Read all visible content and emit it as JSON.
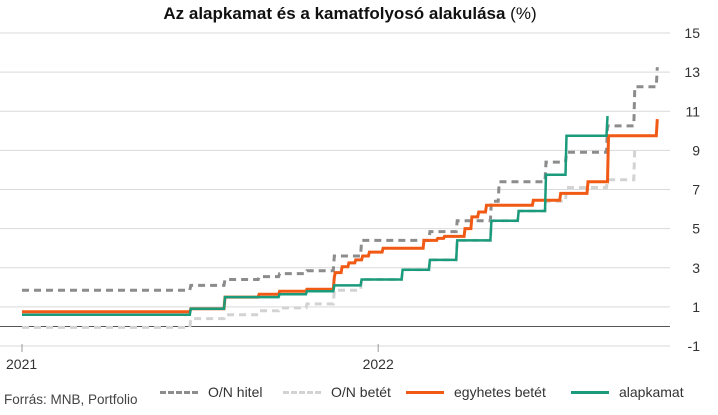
{
  "title": {
    "bold_part": "Az alapkamat és a kamatfolyosó alakulása",
    "unit_part": " (%)"
  },
  "source": "Forrás: MNB, Portfolio",
  "colors": {
    "on_hitel": "#8c8c8c",
    "on_betet": "#d3d3d3",
    "egyhetes": "#f05a14",
    "alapkamat": "#1a9b7b",
    "grid": "#d9d9d9",
    "zero": "#555555",
    "text": "#333333"
  },
  "chart_data": {
    "type": "line",
    "title": "Az alapkamat és a kamatfolyosó alakulása (%)",
    "x_axis": {
      "type": "date",
      "min": "2021-01-01",
      "max": "2022-10-25",
      "ticks": [
        "2021",
        "2022"
      ],
      "tick_dates": [
        "2021-01-01",
        "2022-01-01"
      ]
    },
    "y_axis": {
      "min": -1,
      "max": 15,
      "ticks": [
        -1,
        1,
        3,
        5,
        7,
        9,
        11,
        13,
        15
      ],
      "position": "right",
      "grid": true
    },
    "legend_position": "bottom",
    "series": [
      {
        "name": "O/N hitel",
        "style": "dashed",
        "points": [
          [
            "2021-01-01",
            1.85
          ],
          [
            "2021-06-22",
            1.85
          ],
          [
            "2021-06-23",
            2.1
          ],
          [
            "2021-07-27",
            2.1
          ],
          [
            "2021-07-28",
            2.4
          ],
          [
            "2021-08-31",
            2.4
          ],
          [
            "2021-09-01",
            2.55
          ],
          [
            "2021-09-21",
            2.55
          ],
          [
            "2021-09-22",
            2.7
          ],
          [
            "2021-10-19",
            2.7
          ],
          [
            "2021-10-20",
            2.85
          ],
          [
            "2021-11-16",
            2.85
          ],
          [
            "2021-11-17",
            3.6
          ],
          [
            "2021-12-14",
            3.6
          ],
          [
            "2021-12-15",
            4.4
          ],
          [
            "2022-02-22",
            4.4
          ],
          [
            "2022-02-23",
            4.85
          ],
          [
            "2022-03-22",
            4.85
          ],
          [
            "2022-03-23",
            5.4
          ],
          [
            "2022-04-26",
            5.4
          ],
          [
            "2022-04-27",
            6.4
          ],
          [
            "2022-05-04",
            6.4
          ],
          [
            "2022-05-05",
            7.4
          ],
          [
            "2022-06-21",
            7.4
          ],
          [
            "2022-06-22",
            8.4
          ],
          [
            "2022-07-12",
            8.4
          ],
          [
            "2022-07-13",
            8.9
          ],
          [
            "2022-08-23",
            8.9
          ],
          [
            "2022-08-24",
            10.25
          ],
          [
            "2022-09-20",
            10.25
          ],
          [
            "2022-09-21",
            12.25
          ],
          [
            "2022-10-13",
            12.25
          ],
          [
            "2022-10-14",
            13.25
          ]
        ]
      },
      {
        "name": "O/N betét",
        "style": "dashed",
        "points": [
          [
            "2021-01-01",
            -0.05
          ],
          [
            "2021-06-22",
            -0.05
          ],
          [
            "2021-06-23",
            0.4
          ],
          [
            "2021-07-27",
            0.4
          ],
          [
            "2021-07-28",
            0.6
          ],
          [
            "2021-08-31",
            0.6
          ],
          [
            "2021-09-01",
            0.8
          ],
          [
            "2021-09-21",
            0.8
          ],
          [
            "2021-09-22",
            0.95
          ],
          [
            "2021-10-19",
            0.95
          ],
          [
            "2021-10-20",
            1.15
          ],
          [
            "2021-11-16",
            1.15
          ],
          [
            "2021-11-17",
            1.85
          ],
          [
            "2021-12-14",
            1.85
          ],
          [
            "2021-12-15",
            2.4
          ],
          [
            "2022-01-25",
            2.4
          ],
          [
            "2022-01-26",
            2.9
          ],
          [
            "2022-02-22",
            2.9
          ],
          [
            "2022-02-23",
            3.4
          ],
          [
            "2022-03-22",
            3.4
          ],
          [
            "2022-03-23",
            4.4
          ],
          [
            "2022-04-26",
            4.4
          ],
          [
            "2022-04-27",
            5.4
          ],
          [
            "2022-05-24",
            5.4
          ],
          [
            "2022-05-25",
            5.9
          ],
          [
            "2022-06-21",
            5.9
          ],
          [
            "2022-06-22",
            6.4
          ],
          [
            "2022-07-12",
            6.4
          ],
          [
            "2022-07-13",
            7.1
          ],
          [
            "2022-08-23",
            7.1
          ],
          [
            "2022-08-24",
            7.5
          ],
          [
            "2022-09-20",
            7.5
          ],
          [
            "2022-09-21",
            9.25
          ]
        ]
      },
      {
        "name": "egyhetes betét",
        "style": "solid",
        "points": [
          [
            "2021-01-01",
            0.75
          ],
          [
            "2021-06-22",
            0.75
          ],
          [
            "2021-06-23",
            0.9
          ],
          [
            "2021-07-27",
            0.9
          ],
          [
            "2021-07-28",
            1.5
          ],
          [
            "2021-08-31",
            1.5
          ],
          [
            "2021-09-01",
            1.65
          ],
          [
            "2021-09-21",
            1.65
          ],
          [
            "2021-09-22",
            1.8
          ],
          [
            "2021-10-19",
            1.8
          ],
          [
            "2021-10-20",
            1.9
          ],
          [
            "2021-11-16",
            1.9
          ],
          [
            "2021-11-17",
            2.5
          ],
          [
            "2021-11-18",
            2.75
          ],
          [
            "2021-11-24",
            2.75
          ],
          [
            "2021-11-25",
            3.05
          ],
          [
            "2021-12-01",
            3.05
          ],
          [
            "2021-12-02",
            3.25
          ],
          [
            "2021-12-08",
            3.25
          ],
          [
            "2021-12-09",
            3.4
          ],
          [
            "2021-12-15",
            3.4
          ],
          [
            "2021-12-16",
            3.6
          ],
          [
            "2021-12-22",
            3.6
          ],
          [
            "2021-12-23",
            3.8
          ],
          [
            "2022-01-05",
            3.8
          ],
          [
            "2022-01-06",
            4.0
          ],
          [
            "2022-02-16",
            4.0
          ],
          [
            "2022-02-17",
            4.4
          ],
          [
            "2022-03-02",
            4.4
          ],
          [
            "2022-03-03",
            4.5
          ],
          [
            "2022-03-09",
            4.5
          ],
          [
            "2022-03-10",
            4.6
          ],
          [
            "2022-03-30",
            4.6
          ],
          [
            "2022-03-31",
            5.0
          ],
          [
            "2022-04-06",
            5.0
          ],
          [
            "2022-04-07",
            5.6
          ],
          [
            "2022-04-13",
            5.6
          ],
          [
            "2022-04-14",
            5.85
          ],
          [
            "2022-04-21",
            5.85
          ],
          [
            "2022-04-22",
            6.2
          ],
          [
            "2022-06-08",
            6.2
          ],
          [
            "2022-06-09",
            6.45
          ],
          [
            "2022-07-06",
            6.45
          ],
          [
            "2022-07-07",
            6.8
          ],
          [
            "2022-08-03",
            6.8
          ],
          [
            "2022-08-04",
            7.4
          ],
          [
            "2022-08-24",
            7.4
          ],
          [
            "2022-08-25",
            9.75
          ],
          [
            "2022-10-13",
            9.75
          ],
          [
            "2022-10-14",
            10.6
          ]
        ]
      },
      {
        "name": "alapkamat",
        "style": "solid",
        "points": [
          [
            "2021-01-01",
            0.6
          ],
          [
            "2021-06-22",
            0.6
          ],
          [
            "2021-06-23",
            0.9
          ],
          [
            "2021-07-27",
            0.9
          ],
          [
            "2021-07-28",
            1.5
          ],
          [
            "2021-09-21",
            1.5
          ],
          [
            "2021-09-22",
            1.65
          ],
          [
            "2021-10-19",
            1.65
          ],
          [
            "2021-10-20",
            1.8
          ],
          [
            "2021-11-16",
            1.8
          ],
          [
            "2021-11-17",
            2.1
          ],
          [
            "2021-12-14",
            2.1
          ],
          [
            "2021-12-15",
            2.4
          ],
          [
            "2022-01-25",
            2.4
          ],
          [
            "2022-01-26",
            2.9
          ],
          [
            "2022-02-22",
            2.9
          ],
          [
            "2022-02-23",
            3.4
          ],
          [
            "2022-03-22",
            3.4
          ],
          [
            "2022-03-23",
            4.4
          ],
          [
            "2022-04-26",
            4.4
          ],
          [
            "2022-04-27",
            5.4
          ],
          [
            "2022-05-24",
            5.4
          ],
          [
            "2022-05-25",
            5.9
          ],
          [
            "2022-06-21",
            5.9
          ],
          [
            "2022-06-22",
            7.75
          ],
          [
            "2022-07-12",
            7.75
          ],
          [
            "2022-07-13",
            9.75
          ],
          [
            "2022-08-23",
            9.75
          ],
          [
            "2022-08-24",
            10.75
          ]
        ]
      }
    ]
  }
}
